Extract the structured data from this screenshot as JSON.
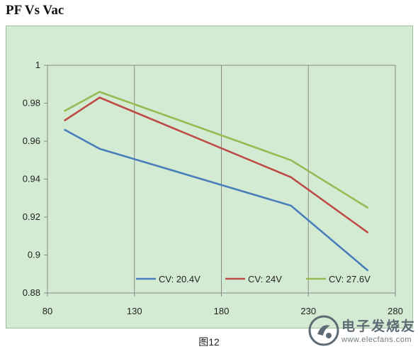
{
  "header": {
    "title": "PF Vs Vac"
  },
  "caption": "图12",
  "watermark": {
    "name": "电子发烧友",
    "url": "www.elecfans.com"
  },
  "chart_data": {
    "type": "line",
    "title": "PF Vs Vac",
    "xlabel": "",
    "ylabel": "",
    "xlim": [
      80,
      280
    ],
    "ylim": [
      0.88,
      1
    ],
    "x_ticks": [
      80,
      130,
      180,
      230,
      280
    ],
    "y_ticks": [
      0.88,
      0.9,
      0.92,
      0.94,
      0.96,
      0.98,
      1
    ],
    "x_tick_labels": [
      "80",
      "130",
      "180",
      "230",
      "280"
    ],
    "y_tick_labels": [
      "0.88",
      "0.9",
      "0.92",
      "0.94",
      "0.96",
      "0.98",
      "1"
    ],
    "grid": {
      "vertical": true,
      "horizontal": false
    },
    "legend": "bottom-right",
    "series": [
      {
        "name": "CV: 20.4V",
        "color": "#4a7ebb",
        "points": [
          [
            90,
            0.966
          ],
          [
            110,
            0.956
          ],
          [
            220,
            0.926
          ],
          [
            264,
            0.892
          ]
        ]
      },
      {
        "name": "CV: 24V",
        "color": "#be4b48",
        "points": [
          [
            90,
            0.971
          ],
          [
            110,
            0.983
          ],
          [
            220,
            0.941
          ],
          [
            264,
            0.912
          ]
        ]
      },
      {
        "name": "CV: 27.6V",
        "color": "#98b954",
        "points": [
          [
            90,
            0.976
          ],
          [
            110,
            0.986
          ],
          [
            220,
            0.95
          ],
          [
            264,
            0.925
          ]
        ]
      }
    ]
  }
}
